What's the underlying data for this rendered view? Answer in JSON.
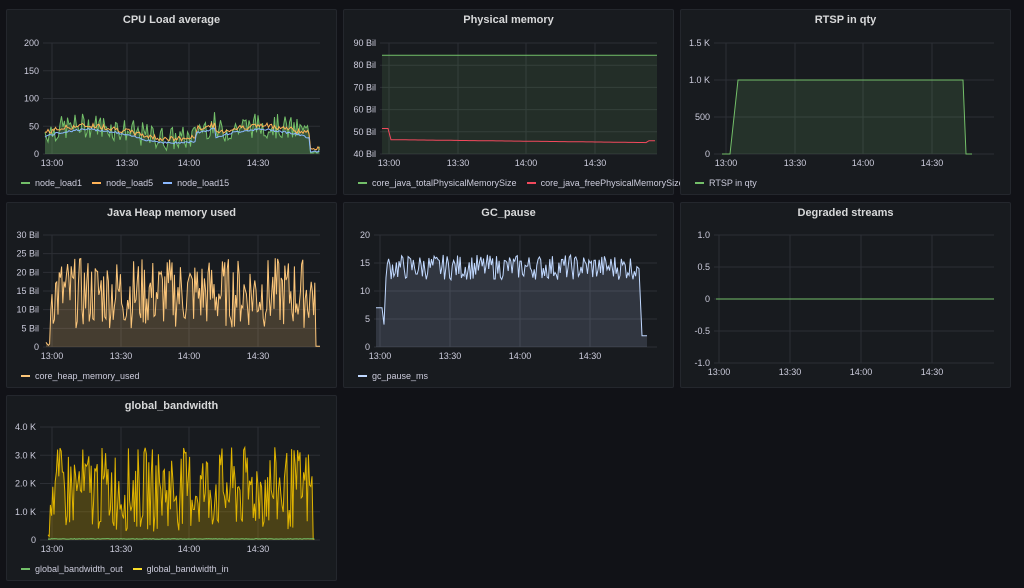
{
  "colors": {
    "green": "#73bf69",
    "yellow": "#fade2a",
    "blue": "#5794f2",
    "lightblue": "#8ab8ff",
    "red": "#f2495c",
    "orange": "#ffb357",
    "amber": "#e0b400",
    "lightorange": "#fcc67a",
    "lavender": "#c0d8ff"
  },
  "panels": [
    {
      "id": "cpu",
      "title": "CPU Load average",
      "x_ticks": [
        "13:00",
        "13:30",
        "14:00",
        "14:30"
      ],
      "y_ticks": [
        "0",
        "50",
        "100",
        "150",
        "200"
      ],
      "legend": [
        {
          "label": "node_load1",
          "color": "#73bf69"
        },
        {
          "label": "node_load5",
          "color": "#ffb357"
        },
        {
          "label": "node_load15",
          "color": "#8ab8ff"
        }
      ]
    },
    {
      "id": "mem",
      "title": "Physical memory",
      "x_ticks": [
        "13:00",
        "13:30",
        "14:00",
        "14:30"
      ],
      "y_ticks": [
        "40 Bil",
        "50 Bil",
        "60 Bil",
        "70 Bil",
        "80 Bil",
        "90 Bil"
      ],
      "legend": [
        {
          "label": "core_java_totalPhysicalMemorySize",
          "color": "#73bf69"
        },
        {
          "label": "core_java_freePhysicalMemorySize",
          "color": "#f2495c"
        }
      ]
    },
    {
      "id": "rtsp",
      "title": "RTSP in qty",
      "x_ticks": [
        "13:00",
        "13:30",
        "14:00",
        "14:30"
      ],
      "y_ticks": [
        "0",
        "500",
        "1.0 K",
        "1.5 K"
      ],
      "legend": [
        {
          "label": "RTSP in qty",
          "color": "#73bf69"
        }
      ]
    },
    {
      "id": "heap",
      "title": "Java Heap memory used",
      "x_ticks": [
        "13:00",
        "13:30",
        "14:00",
        "14:30"
      ],
      "y_ticks": [
        "0",
        "5 Bil",
        "10 Bil",
        "15 Bil",
        "20 Bil",
        "25 Bil",
        "30 Bil"
      ],
      "legend": [
        {
          "label": "core_heap_memory_used",
          "color": "#fcc67a"
        }
      ]
    },
    {
      "id": "gc",
      "title": "GC_pause",
      "x_ticks": [
        "13:00",
        "13:30",
        "14:00",
        "14:30"
      ],
      "y_ticks": [
        "0",
        "5",
        "10",
        "15",
        "20"
      ],
      "legend": [
        {
          "label": "gc_pause_ms",
          "color": "#c0d8ff"
        }
      ]
    },
    {
      "id": "deg",
      "title": "Degraded streams",
      "x_ticks": [
        "13:00",
        "13:30",
        "14:00",
        "14:30"
      ],
      "y_ticks": [
        "-1.0",
        "-0.5",
        "0",
        "0.5",
        "1.0"
      ],
      "legend": []
    },
    {
      "id": "bw",
      "title": "global_bandwidth",
      "x_ticks": [
        "13:00",
        "13:30",
        "14:00",
        "14:30"
      ],
      "y_ticks": [
        "0",
        "1.0 K",
        "2.0 K",
        "3.0 K",
        "4.0 K"
      ],
      "legend": [
        {
          "label": "global_bandwidth_out",
          "color": "#73bf69"
        },
        {
          "label": "global_bandwidth_in",
          "color": "#fade2a"
        }
      ]
    }
  ]
}
